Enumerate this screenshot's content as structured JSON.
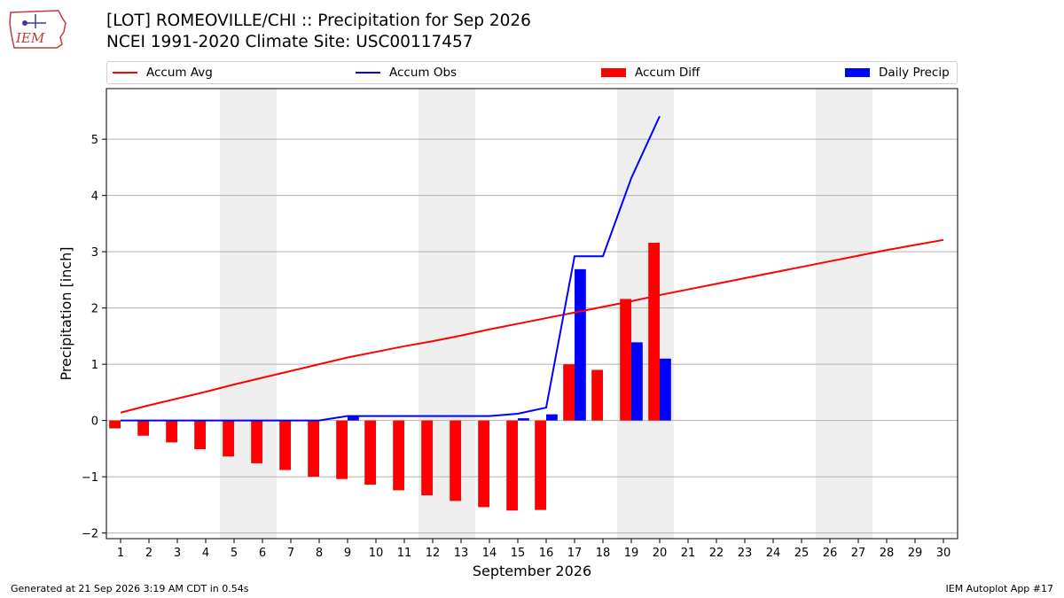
{
  "header": {
    "title_line1": "[LOT] ROMEOVILLE/CHI :: Precipitation for Sep 2026",
    "title_line2": "NCEI 1991-2020 Climate Site: USC00117457",
    "logo_text": "IEM"
  },
  "footer": {
    "generated": "Generated at 21 Sep 2026 3:19 AM CDT in 0.54s",
    "app": "IEM Autoplot App #17"
  },
  "colors": {
    "avg": "#ff0000",
    "obs": "#0000ff",
    "diff": "#ff0000",
    "daily": "#0000ff",
    "weekend_shade": "#eeeeee",
    "grid": "#b0b0b0"
  },
  "chart_data": {
    "type": "bar",
    "xlabel": "September 2026",
    "ylabel": "Precipitation [inch]",
    "ylim": [
      -2.1,
      5.9
    ],
    "yticks": [
      -2,
      -1,
      0,
      1,
      2,
      3,
      4,
      5
    ],
    "ytick_labels": [
      "−2",
      "−1",
      "0",
      "1",
      "2",
      "3",
      "4",
      "5"
    ],
    "xlim": [
      0.5,
      30.5
    ],
    "days": [
      1,
      2,
      3,
      4,
      5,
      6,
      7,
      8,
      9,
      10,
      11,
      12,
      13,
      14,
      15,
      16,
      17,
      18,
      19,
      20,
      21,
      22,
      23,
      24,
      25,
      26,
      27,
      28,
      29,
      30
    ],
    "grid": "horizontal",
    "legend_position": "top",
    "shaded_ranges": [
      [
        4.5,
        6.5
      ],
      [
        11.5,
        13.5
      ],
      [
        18.5,
        20.5
      ],
      [
        25.5,
        27.5
      ]
    ],
    "series": [
      {
        "name": "Accum Avg",
        "kind": "line",
        "x": [
          1,
          2,
          3,
          4,
          5,
          6,
          7,
          8,
          9,
          10,
          11,
          12,
          13,
          14,
          15,
          16,
          17,
          18,
          19,
          20,
          21,
          22,
          23,
          24,
          25,
          26,
          27,
          28,
          29,
          30
        ],
        "values": [
          0.14,
          0.27,
          0.39,
          0.51,
          0.64,
          0.76,
          0.88,
          1.0,
          1.12,
          1.22,
          1.32,
          1.41,
          1.51,
          1.62,
          1.72,
          1.82,
          1.92,
          2.02,
          2.12,
          2.23,
          2.33,
          2.43,
          2.53,
          2.63,
          2.73,
          2.83,
          2.93,
          3.03,
          3.12,
          3.21
        ]
      },
      {
        "name": "Accum Obs",
        "kind": "line",
        "x": [
          1,
          2,
          3,
          4,
          5,
          6,
          7,
          8,
          9,
          10,
          11,
          12,
          13,
          14,
          15,
          16,
          17,
          18,
          19,
          20
        ],
        "values": [
          0.0,
          0.0,
          0.0,
          0.0,
          0.0,
          0.0,
          0.0,
          0.0,
          0.08,
          0.08,
          0.08,
          0.08,
          0.08,
          0.08,
          0.12,
          0.23,
          2.92,
          2.92,
          4.31,
          5.41
        ]
      },
      {
        "name": "Accum Diff",
        "kind": "bar",
        "x": [
          1,
          2,
          3,
          4,
          5,
          6,
          7,
          8,
          9,
          10,
          11,
          12,
          13,
          14,
          15,
          16,
          17,
          18,
          19,
          20
        ],
        "values": [
          -0.14,
          -0.27,
          -0.39,
          -0.51,
          -0.64,
          -0.76,
          -0.88,
          -1.0,
          -1.04,
          -1.14,
          -1.24,
          -1.33,
          -1.43,
          -1.54,
          -1.6,
          -1.59,
          1.0,
          0.9,
          2.16,
          3.16
        ]
      },
      {
        "name": "Daily Precip",
        "kind": "bar",
        "x": [
          1,
          2,
          3,
          4,
          5,
          6,
          7,
          8,
          9,
          10,
          11,
          12,
          13,
          14,
          15,
          16,
          17,
          18,
          19,
          20
        ],
        "values": [
          0,
          0,
          0,
          0,
          0,
          0,
          0,
          0,
          0.08,
          0,
          0,
          0,
          0,
          0,
          0.04,
          0.11,
          2.69,
          0,
          1.39,
          1.1
        ]
      }
    ]
  }
}
